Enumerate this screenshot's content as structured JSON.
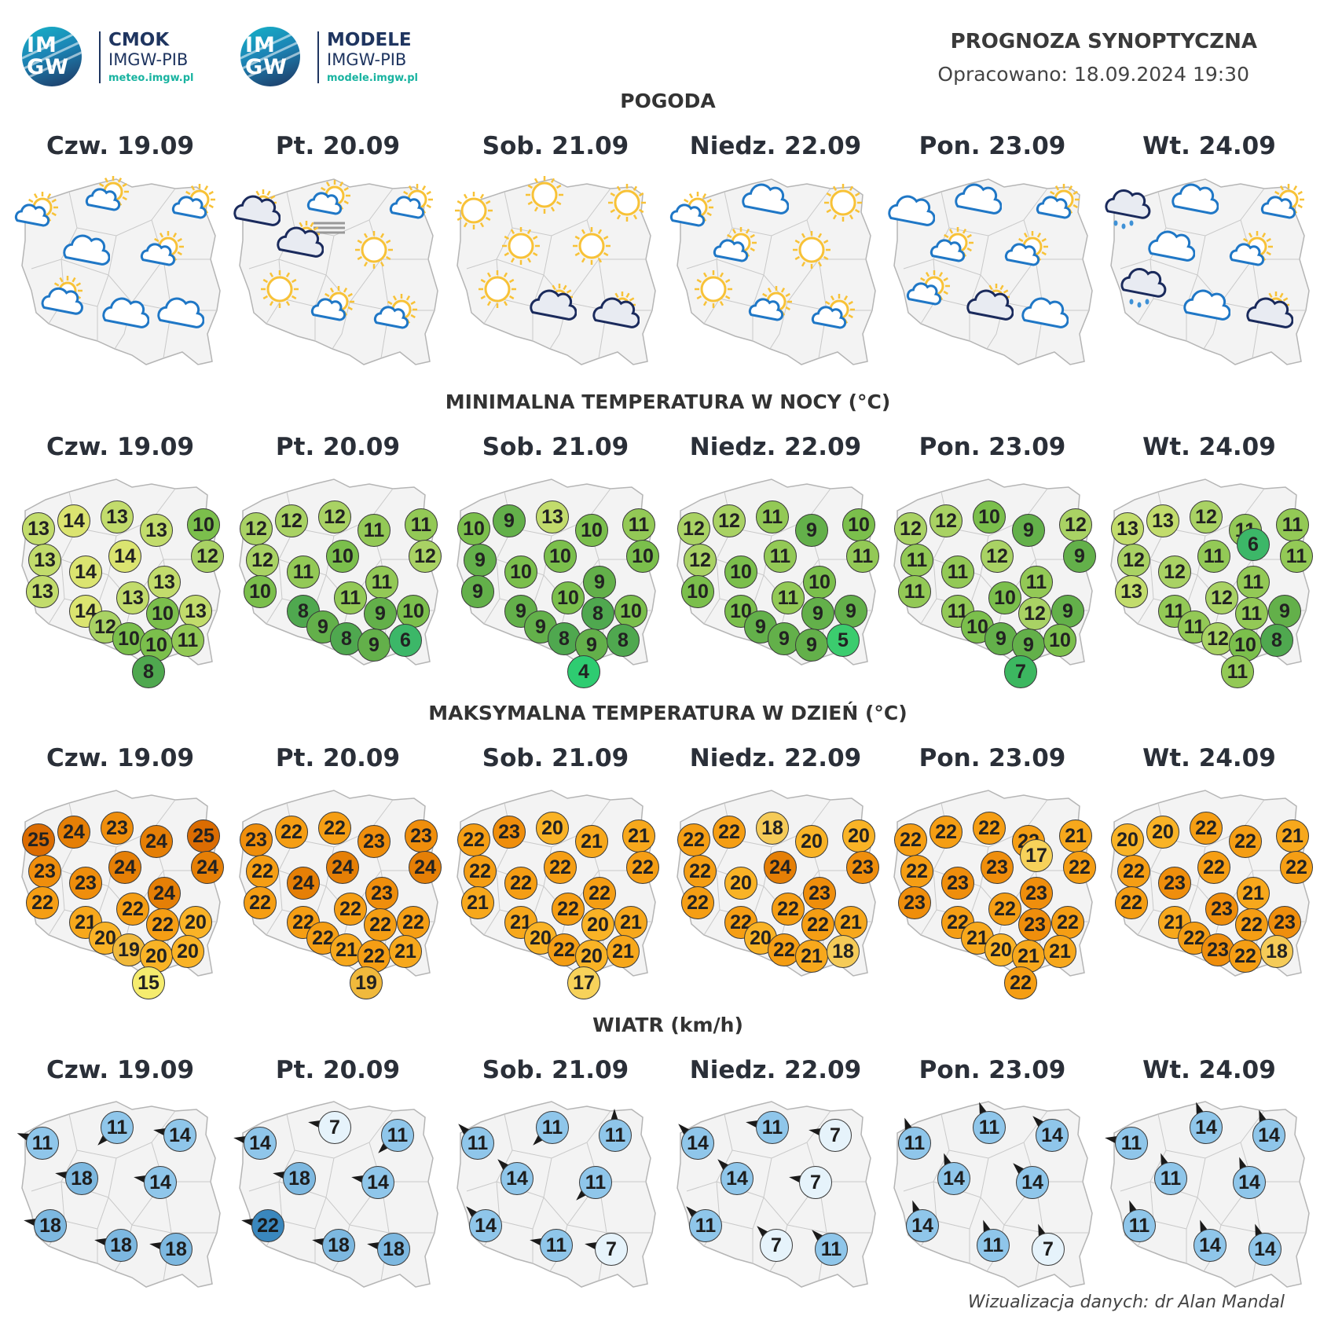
{
  "logos": [
    {
      "circle_text_top": "IM",
      "circle_text_bottom": "GW",
      "name": "CMOK",
      "sub": "IMGW-PIB",
      "url": "meteo.imgw.pl"
    },
    {
      "circle_text_top": "IM",
      "circle_text_bottom": "GW",
      "name": "MODELE",
      "sub": "IMGW-PIB",
      "url": "modele.imgw.pl"
    }
  ],
  "header": {
    "title": "PROGNOZA SYNOPTYCZNA",
    "date": "Opracowano: 18.09.2024 19:30"
  },
  "days": [
    "Czw. 19.09",
    "Pt. 20.09",
    "Sob. 21.09",
    "Niedz. 22.09",
    "Pon. 23.09",
    "Wt. 24.09"
  ],
  "sections": {
    "weather": "POGODA",
    "tmin": "MINIMALNA TEMPERATURA W NOCY (°C)",
    "tmax": "MAKSYMALNA TEMPERATURA W DZIEŃ (°C)",
    "wind": "WIATR (km/h)"
  },
  "weather_icons": [
    [
      "sun-cloud-small-icon",
      "sun-cloud-small-icon",
      "sun-cloud-small-icon",
      "cloud-icon",
      "sun-cloud-small-icon",
      "sun-cloud-icon",
      "cloud-icon",
      "cloud-icon"
    ],
    [
      "dark-cloud-icon",
      "sun-cloud-small-icon",
      "sun-cloud-small-icon",
      "fog-icon",
      "dark-cloud-icon",
      "sun-icon",
      "sun-icon",
      "sun-cloud-small-icon",
      "sun-cloud-small-icon"
    ],
    [
      "sun-icon",
      "sun-icon",
      "sun-icon",
      "sun-icon",
      "sun-icon",
      "sun-icon",
      "dark-cloud-icon",
      "dark-cloud-icon"
    ],
    [
      "sun-cloud-small-icon",
      "cloud-icon",
      "sun-icon",
      "sun-cloud-small-icon",
      "sun-icon",
      "sun-icon",
      "sun-cloud-small-icon",
      "sun-cloud-small-icon"
    ],
    [
      "cloud-icon",
      "cloud-icon",
      "sun-cloud-small-icon",
      "sun-cloud-small-icon",
      "sun-cloud-small-icon",
      "sun-cloud-small-icon",
      "dark-cloud-icon",
      "cloud-icon"
    ],
    [
      "rain-cloud-icon",
      "cloud-icon",
      "sun-cloud-small-icon",
      "cloud-icon",
      "sun-cloud-small-icon",
      "rain-cloud-icon",
      "cloud-icon",
      "dark-cloud-icon"
    ]
  ],
  "tmin": [
    [
      13,
      14,
      13,
      13,
      10,
      14,
      12,
      13,
      14,
      13,
      13,
      13,
      14,
      10,
      13,
      12,
      10,
      10,
      11,
      8
    ],
    [
      12,
      12,
      12,
      11,
      11,
      10,
      12,
      12,
      11,
      11,
      10,
      11,
      8,
      9,
      10,
      9,
      8,
      9,
      6
    ],
    [
      10,
      9,
      13,
      10,
      11,
      10,
      10,
      9,
      10,
      9,
      9,
      10,
      9,
      8,
      10,
      9,
      8,
      9,
      8,
      4
    ],
    [
      12,
      12,
      11,
      9,
      10,
      11,
      11,
      12,
      10,
      10,
      10,
      11,
      10,
      9,
      9,
      9,
      9,
      9,
      5
    ],
    [
      12,
      12,
      10,
      9,
      12,
      12,
      9,
      11,
      11,
      11,
      11,
      10,
      11,
      12,
      9,
      10,
      9,
      9,
      10,
      7
    ],
    [
      13,
      13,
      12,
      11,
      11,
      11,
      11,
      12,
      12,
      11,
      13,
      12,
      11,
      11,
      9,
      11,
      12,
      10,
      8,
      11,
      6
    ]
  ],
  "tmax": [
    [
      25,
      24,
      23,
      24,
      25,
      24,
      24,
      23,
      23,
      24,
      22,
      22,
      21,
      22,
      20,
      20,
      19,
      20,
      20,
      15
    ],
    [
      23,
      22,
      22,
      23,
      23,
      24,
      24,
      22,
      24,
      23,
      22,
      22,
      22,
      22,
      22,
      22,
      21,
      22,
      21,
      19
    ],
    [
      22,
      23,
      20,
      21,
      21,
      22,
      22,
      22,
      22,
      22,
      21,
      22,
      21,
      20,
      21,
      20,
      22,
      20,
      21,
      17
    ],
    [
      22,
      22,
      18,
      20,
      20,
      24,
      23,
      22,
      20,
      23,
      22,
      22,
      22,
      22,
      21,
      20,
      22,
      21,
      18
    ],
    [
      22,
      22,
      22,
      22,
      21,
      23,
      22,
      22,
      23,
      23,
      23,
      22,
      22,
      23,
      22,
      21,
      20,
      21,
      21,
      22,
      17
    ],
    [
      20,
      20,
      22,
      22,
      21,
      22,
      22,
      22,
      23,
      21,
      22,
      23,
      21,
      22,
      23,
      22,
      23,
      22,
      18
    ]
  ],
  "wind": [
    [
      11,
      11,
      14,
      18,
      14,
      18,
      18,
      18
    ],
    [
      14,
      7,
      11,
      18,
      14,
      22,
      18,
      18
    ],
    [
      11,
      11,
      11,
      14,
      11,
      14,
      11,
      7
    ],
    [
      14,
      11,
      7,
      14,
      7,
      11,
      7,
      11
    ],
    [
      11,
      11,
      14,
      14,
      14,
      14,
      11,
      7
    ],
    [
      11,
      14,
      14,
      11,
      14,
      11,
      14,
      14
    ]
  ],
  "colors": {
    "t4": "#2ecc71",
    "t5": "#3bcc6e",
    "t6": "#3cb768",
    "t7": "#3cb760",
    "t8": "#4fa84f",
    "t9": "#63b04a",
    "t10": "#7bbf4c",
    "t11": "#93c956",
    "t12": "#a9d264",
    "t13": "#c2dc6c",
    "t14": "#dbe470",
    "t15": "#f5ec6e",
    "t17": "#f7d25a",
    "t18": "#f5cb58",
    "t19": "#f0b93c",
    "t20": "#f9b326",
    "t21": "#f7a81c",
    "t22": "#f59e14",
    "t23": "#ef8e0c",
    "t24": "#e57f06",
    "t25": "#db6c02",
    "w7": "#e6f3fb",
    "w11": "#8fc6ea",
    "w14": "#8fc6ea",
    "w18": "#7db8e0",
    "w22": "#3a87bd",
    "sun": "#f8c237",
    "cloud_stroke": "#1f77c6",
    "dark_cloud": "#1a2a5c",
    "rain": "#3f91d6",
    "map_fill": "#f3f3f3",
    "map_stroke": "#b5b5b5"
  },
  "credit": "Wizualizacja danych: dr Alan Mandal"
}
